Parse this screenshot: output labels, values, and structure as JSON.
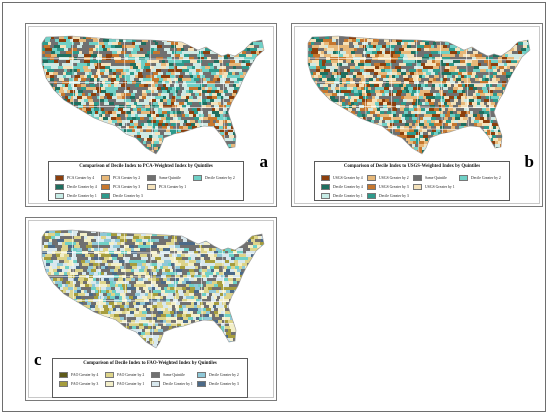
{
  "colors": {
    "border": "#7a7a7a",
    "background": "#ffffff",
    "land_default": "#cfe9e4",
    "state_line": "#ffffff"
  },
  "panels": [
    {
      "id": "a",
      "letter": "a",
      "legend_title": "Comparison of Decile Index to PCA-Weighted Index by Quintiles",
      "legend_items": [
        {
          "label": "PCA Greater by 4",
          "color": "#8c3f0c"
        },
        {
          "label": "PCA Greater by 2",
          "color": "#e7b879"
        },
        {
          "label": "Same Quintile",
          "color": "#707070"
        },
        {
          "label": "Decile Greater by 2",
          "color": "#6fd0c6"
        },
        {
          "label": "Decile Greater by 4",
          "color": "#1f6f5f"
        },
        {
          "label": "PCA Greater by 3",
          "color": "#c6772e"
        },
        {
          "label": "PCA Greater by 1",
          "color": "#f4e2bb"
        },
        {
          "label": "",
          "color": ""
        },
        {
          "label": "Decile Greater by 1",
          "color": "#c6ece6"
        },
        {
          "label": "Decile Greater by 3",
          "color": "#2e9a8c"
        }
      ],
      "palette": [
        "#707070",
        "#707070",
        "#707070",
        "#cfe9e4",
        "#cfe9e4",
        "#6fd0c6",
        "#6fd0c6",
        "#2e9a8c",
        "#f4e2bb",
        "#e7b879",
        "#c6772e",
        "#8c3f0c",
        "#1f6f5f"
      ],
      "seed": 7
    },
    {
      "id": "b",
      "letter": "b",
      "legend_title": "Comparison of Decile Index to USGS-Weighted Index by Quintiles",
      "legend_items": [
        {
          "label": "USGS Greater by 4",
          "color": "#8c3f0c"
        },
        {
          "label": "USGS Greater by 2",
          "color": "#e7b879"
        },
        {
          "label": "Same Quintile",
          "color": "#707070"
        },
        {
          "label": "Decile Greater by 2",
          "color": "#6fd0c6"
        },
        {
          "label": "Decile Greater by 4",
          "color": "#1f6f5f"
        },
        {
          "label": "USGS Greater by 3",
          "color": "#c6772e"
        },
        {
          "label": "USGS Greater by 1",
          "color": "#f4e2bb"
        },
        {
          "label": "",
          "color": ""
        },
        {
          "label": "Decile Greater by 1",
          "color": "#c6ece6"
        },
        {
          "label": "Decile Greater by 3",
          "color": "#2e9a8c"
        }
      ],
      "palette": [
        "#707070",
        "#707070",
        "#707070",
        "#f4e2bb",
        "#f4e2bb",
        "#e7b879",
        "#e7b879",
        "#c6772e",
        "#cfe9e4",
        "#6fd0c6",
        "#2e9a8c",
        "#8c3f0c",
        "#1f6f5f"
      ],
      "seed": 19
    },
    {
      "id": "c",
      "letter": "c",
      "legend_title": "Comparison of Decile Index to FAO-Weighted Index by Quintiles",
      "legend_items": [
        {
          "label": "FAO Greater by 4",
          "color": "#5e5a1a"
        },
        {
          "label": "FAO Greater by 2",
          "color": "#ddd48a"
        },
        {
          "label": "Same Quintile",
          "color": "#707070"
        },
        {
          "label": "Decile Greater by 2",
          "color": "#8fc8d8"
        },
        {
          "label": "FAO Greater by 3",
          "color": "#a69d3d"
        },
        {
          "label": "FAO Greater by 1",
          "color": "#f3efc9"
        },
        {
          "label": "Decile Greater by 1",
          "color": "#d8e8ee"
        },
        {
          "label": "Decile Greater by 3",
          "color": "#4c6a88"
        }
      ],
      "palette": [
        "#707070",
        "#707070",
        "#707070",
        "#f3efc9",
        "#f3efc9",
        "#ddd48a",
        "#ddd48a",
        "#d8e8ee",
        "#d8e8ee",
        "#8fc8d8",
        "#a69d3d",
        "#4c6a88",
        "#6fd0c6"
      ],
      "seed": 31
    }
  ]
}
